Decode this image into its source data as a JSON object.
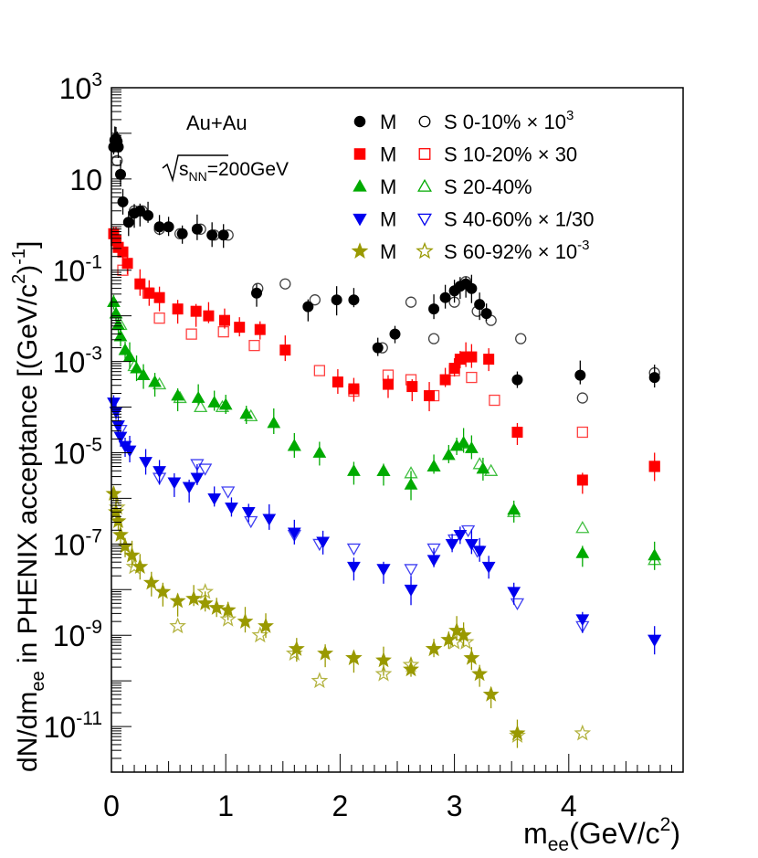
{
  "chart_data": {
    "type": "scatter",
    "title": "",
    "xlabel": {
      "main": "m",
      "sub": "ee",
      "rest": "(GeV/c",
      "sup": "2",
      "close": ")"
    },
    "ylabel": {
      "a": "dN/dm",
      "sub": "ee",
      "b": " in PHENIX acceptance [(GeV/c",
      "sup": "2",
      "c": ")",
      "sup2": "-1",
      "d": "]"
    },
    "xlim": [
      0,
      5
    ],
    "ylim_log10": [
      -12,
      3
    ],
    "y_scale": "log",
    "x_ticks": [
      {
        "v": 0,
        "label": "0"
      },
      {
        "v": 1,
        "label": "1"
      },
      {
        "v": 2,
        "label": "2"
      },
      {
        "v": 3,
        "label": "3"
      },
      {
        "v": 4,
        "label": "4"
      }
    ],
    "y_ticks": [
      {
        "exp": 3,
        "base": "10",
        "sup": "3"
      },
      {
        "exp": 1,
        "base": "10",
        "sup": ""
      },
      {
        "exp": -1,
        "base": "10",
        "sup": "-1"
      },
      {
        "exp": -3,
        "base": "10",
        "sup": "-3"
      },
      {
        "exp": -5,
        "base": "10",
        "sup": "-5"
      },
      {
        "exp": -7,
        "base": "10",
        "sup": "-7"
      },
      {
        "exp": -9,
        "base": "10",
        "sup": "-9"
      },
      {
        "exp": -11,
        "base": "10",
        "sup": "-11"
      }
    ],
    "annotations": {
      "system": "Au+Au",
      "energy_prefix": "s",
      "energy_sub": "NN",
      "energy_suffix": "=200GeV"
    },
    "legend_position": "top-right",
    "series": [
      {
        "name": "M",
        "label": "S 0-10%",
        "scale_text": "× 10",
        "scale_sup": "3",
        "color": "#000000",
        "marker": "circle",
        "open_fill": "#000000",
        "points": [
          [
            0.02,
            1.7
          ],
          [
            0.03,
            1.85
          ],
          [
            0.04,
            1.88
          ],
          [
            0.05,
            1.82
          ],
          [
            0.06,
            1.7
          ],
          [
            0.08,
            1.1
          ],
          [
            0.1,
            0.5
          ],
          [
            0.15,
            0.05
          ],
          [
            0.2,
            0.25
          ],
          [
            0.25,
            0.3
          ],
          [
            0.32,
            0.2
          ],
          [
            0.42,
            -0.05
          ],
          [
            0.5,
            -0.05
          ],
          [
            0.62,
            -0.2
          ],
          [
            0.75,
            -0.1
          ],
          [
            0.88,
            -0.23
          ],
          [
            0.98,
            -0.23
          ],
          [
            1.27,
            -1.5
          ],
          [
            1.72,
            -1.8
          ],
          [
            1.97,
            -1.65
          ],
          [
            2.12,
            -1.65
          ],
          [
            2.33,
            -2.7
          ],
          [
            2.48,
            -2.4
          ],
          [
            2.82,
            -1.85
          ],
          [
            2.92,
            -1.6
          ],
          [
            3.0,
            -1.45
          ],
          [
            3.05,
            -1.35
          ],
          [
            3.1,
            -1.3
          ],
          [
            3.15,
            -1.4
          ],
          [
            3.22,
            -1.75
          ],
          [
            3.28,
            -1.95
          ],
          [
            3.55,
            -3.4
          ],
          [
            4.1,
            -3.3
          ],
          [
            4.75,
            -3.35
          ]
        ],
        "open_points": [
          [
            0.05,
            1.4
          ],
          [
            0.2,
            0.3
          ],
          [
            0.27,
            0.3
          ],
          [
            0.42,
            -0.1
          ],
          [
            0.6,
            -0.2
          ],
          [
            0.78,
            -0.1
          ],
          [
            0.9,
            -0.23
          ],
          [
            1.02,
            -0.23
          ],
          [
            1.28,
            -1.4
          ],
          [
            1.52,
            -1.3
          ],
          [
            1.78,
            -1.65
          ],
          [
            2.37,
            -2.7
          ],
          [
            2.62,
            -1.7
          ],
          [
            2.82,
            -2.5
          ],
          [
            3.0,
            -1.7
          ],
          [
            3.1,
            -1.25
          ],
          [
            3.2,
            -1.9
          ],
          [
            3.32,
            -2.1
          ],
          [
            3.58,
            -2.5
          ],
          [
            4.12,
            -3.8
          ],
          [
            4.75,
            -3.25
          ]
        ]
      },
      {
        "name": "M",
        "label": "S 10-20%",
        "scale_text": "× 30",
        "scale_sup": "",
        "color": "#ff0000",
        "marker": "square",
        "open_fill": "#ff0000",
        "points": [
          [
            0.02,
            -0.2
          ],
          [
            0.04,
            -0.35
          ],
          [
            0.06,
            -0.5
          ],
          [
            0.1,
            -0.6
          ],
          [
            0.14,
            -0.85
          ],
          [
            0.25,
            -1.3
          ],
          [
            0.33,
            -1.5
          ],
          [
            0.42,
            -1.6
          ],
          [
            0.58,
            -1.85
          ],
          [
            0.74,
            -1.9
          ],
          [
            0.85,
            -2.0
          ],
          [
            0.99,
            -2.1
          ],
          [
            1.12,
            -2.25
          ],
          [
            1.3,
            -2.3
          ],
          [
            1.52,
            -2.75
          ],
          [
            1.98,
            -3.45
          ],
          [
            2.12,
            -3.6
          ],
          [
            2.42,
            -3.5
          ],
          [
            2.63,
            -3.55
          ],
          [
            2.78,
            -3.75
          ],
          [
            2.92,
            -3.4
          ],
          [
            3.0,
            -3.15
          ],
          [
            3.05,
            -2.95
          ],
          [
            3.1,
            -2.9
          ],
          [
            3.15,
            -2.9
          ],
          [
            3.3,
            -2.95
          ],
          [
            3.55,
            -4.55
          ],
          [
            4.12,
            -5.6
          ],
          [
            4.75,
            -5.3
          ]
        ],
        "open_points": [
          [
            0.1,
            -1.0
          ],
          [
            0.32,
            -1.5
          ],
          [
            0.42,
            -2.05
          ],
          [
            0.7,
            -2.4
          ],
          [
            0.98,
            -2.35
          ],
          [
            1.25,
            -2.65
          ],
          [
            1.82,
            -3.2
          ],
          [
            2.12,
            -3.65
          ],
          [
            2.42,
            -3.3
          ],
          [
            2.62,
            -3.4
          ],
          [
            2.82,
            -3.75
          ],
          [
            3.0,
            -3.2
          ],
          [
            3.15,
            -3.35
          ],
          [
            3.35,
            -3.85
          ],
          [
            4.12,
            -4.55
          ],
          [
            4.75,
            -5.3
          ]
        ]
      },
      {
        "name": "M",
        "label": "S 20-40%",
        "scale_text": "",
        "scale_sup": "",
        "color": "#00aa00",
        "marker": "triangle",
        "open_fill": "#00aa00",
        "points": [
          [
            0.02,
            -1.7
          ],
          [
            0.04,
            -1.95
          ],
          [
            0.06,
            -2.2
          ],
          [
            0.08,
            -2.45
          ],
          [
            0.12,
            -2.75
          ],
          [
            0.16,
            -2.9
          ],
          [
            0.22,
            -3.15
          ],
          [
            0.28,
            -3.3
          ],
          [
            0.38,
            -3.45
          ],
          [
            0.58,
            -3.75
          ],
          [
            0.76,
            -3.8
          ],
          [
            0.9,
            -3.9
          ],
          [
            1.0,
            -3.95
          ],
          [
            1.18,
            -4.15
          ],
          [
            1.42,
            -4.35
          ],
          [
            1.6,
            -4.85
          ],
          [
            1.82,
            -5.0
          ],
          [
            2.12,
            -5.4
          ],
          [
            2.38,
            -5.4
          ],
          [
            2.62,
            -5.7
          ],
          [
            2.82,
            -5.3
          ],
          [
            2.95,
            -5.05
          ],
          [
            3.02,
            -4.85
          ],
          [
            3.08,
            -4.78
          ],
          [
            3.15,
            -4.9
          ],
          [
            3.25,
            -5.35
          ],
          [
            3.52,
            -6.25
          ],
          [
            4.12,
            -7.2
          ],
          [
            4.75,
            -7.25
          ]
        ],
        "open_points": [
          [
            0.08,
            -2.2
          ],
          [
            0.2,
            -3.1
          ],
          [
            0.42,
            -3.5
          ],
          [
            0.6,
            -3.8
          ],
          [
            0.78,
            -4.0
          ],
          [
            0.97,
            -4.0
          ],
          [
            1.22,
            -4.2
          ],
          [
            1.6,
            -4.85
          ],
          [
            2.38,
            -5.4
          ],
          [
            2.62,
            -5.45
          ],
          [
            2.82,
            -5.3
          ],
          [
            3.08,
            -4.8
          ],
          [
            3.22,
            -5.25
          ],
          [
            3.32,
            -5.4
          ],
          [
            3.52,
            -6.3
          ],
          [
            4.12,
            -6.65
          ],
          [
            4.75,
            -7.35
          ]
        ]
      },
      {
        "name": "M",
        "label": "S 40-60%",
        "scale_text": "× 1/30",
        "scale_sup": "",
        "color": "#0000ee",
        "marker": "triangle-down",
        "open_fill": "#0000ee",
        "points": [
          [
            0.02,
            -3.9
          ],
          [
            0.04,
            -4.1
          ],
          [
            0.06,
            -4.4
          ],
          [
            0.08,
            -4.65
          ],
          [
            0.12,
            -4.85
          ],
          [
            0.16,
            -4.95
          ],
          [
            0.3,
            -5.2
          ],
          [
            0.42,
            -5.4
          ],
          [
            0.55,
            -5.65
          ],
          [
            0.68,
            -5.75
          ],
          [
            0.75,
            -5.55
          ],
          [
            0.9,
            -6.0
          ],
          [
            1.05,
            -6.2
          ],
          [
            1.2,
            -6.3
          ],
          [
            1.38,
            -6.45
          ],
          [
            1.6,
            -6.75
          ],
          [
            1.85,
            -6.95
          ],
          [
            2.12,
            -7.5
          ],
          [
            2.38,
            -7.55
          ],
          [
            2.62,
            -8.0
          ],
          [
            2.82,
            -7.35
          ],
          [
            2.98,
            -7.0
          ],
          [
            3.05,
            -6.8
          ],
          [
            3.15,
            -7.0
          ],
          [
            3.22,
            -7.15
          ],
          [
            3.3,
            -7.5
          ],
          [
            3.52,
            -8.05
          ],
          [
            4.12,
            -8.65
          ],
          [
            4.75,
            -9.1
          ]
        ],
        "open_points": [
          [
            0.08,
            -4.5
          ],
          [
            0.42,
            -5.55
          ],
          [
            0.75,
            -5.25
          ],
          [
            0.82,
            -5.35
          ],
          [
            1.02,
            -5.85
          ],
          [
            1.22,
            -6.5
          ],
          [
            1.6,
            -6.8
          ],
          [
            1.82,
            -7.0
          ],
          [
            2.12,
            -7.1
          ],
          [
            2.38,
            -7.55
          ],
          [
            2.62,
            -7.55
          ],
          [
            2.82,
            -7.1
          ],
          [
            3.0,
            -6.9
          ],
          [
            3.12,
            -6.7
          ],
          [
            3.2,
            -7.15
          ],
          [
            3.55,
            -8.3
          ],
          [
            4.12,
            -8.8
          ],
          [
            4.75,
            -9.1
          ]
        ]
      },
      {
        "name": "M",
        "label": "S 60-92%",
        "scale_text": "× 10",
        "scale_sup": "-3",
        "color": "#999900",
        "marker": "star",
        "open_fill": "#999900",
        "points": [
          [
            0.02,
            -5.9
          ],
          [
            0.04,
            -6.3
          ],
          [
            0.06,
            -6.5
          ],
          [
            0.08,
            -6.8
          ],
          [
            0.12,
            -7.05
          ],
          [
            0.18,
            -7.25
          ],
          [
            0.25,
            -7.5
          ],
          [
            0.35,
            -7.85
          ],
          [
            0.45,
            -8.05
          ],
          [
            0.58,
            -8.25
          ],
          [
            0.72,
            -8.2
          ],
          [
            0.82,
            -8.3
          ],
          [
            0.92,
            -8.4
          ],
          [
            1.02,
            -8.45
          ],
          [
            1.17,
            -8.7
          ],
          [
            1.35,
            -8.8
          ],
          [
            1.62,
            -9.3
          ],
          [
            1.87,
            -9.4
          ],
          [
            2.12,
            -9.5
          ],
          [
            2.38,
            -9.55
          ],
          [
            2.62,
            -9.75
          ],
          [
            2.82,
            -9.3
          ],
          [
            2.95,
            -9.1
          ],
          [
            3.02,
            -8.9
          ],
          [
            3.08,
            -9.0
          ],
          [
            3.15,
            -9.5
          ],
          [
            3.22,
            -9.85
          ],
          [
            3.32,
            -10.3
          ],
          [
            3.55,
            -11.15
          ]
        ],
        "open_points": [
          [
            0.05,
            -6.2
          ],
          [
            0.2,
            -7.5
          ],
          [
            0.58,
            -8.8
          ],
          [
            0.82,
            -8.05
          ],
          [
            1.02,
            -8.65
          ],
          [
            1.3,
            -9.0
          ],
          [
            1.6,
            -9.4
          ],
          [
            1.82,
            -10.0
          ],
          [
            2.12,
            -9.5
          ],
          [
            2.38,
            -9.85
          ],
          [
            2.62,
            -9.65
          ],
          [
            2.82,
            -9.3
          ],
          [
            3.0,
            -9.15
          ],
          [
            3.1,
            -9.15
          ],
          [
            3.55,
            -11.2
          ],
          [
            4.12,
            -11.15
          ]
        ]
      }
    ]
  }
}
